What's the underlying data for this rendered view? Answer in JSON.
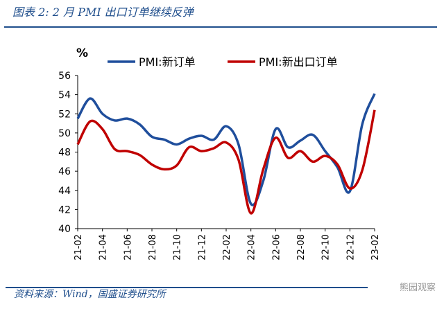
{
  "title": "图表 2:  2 月 PMI 出口订单继续反弹",
  "source": "资料来源：Wind，国盛证券研究所",
  "watermark": "熊园观察",
  "chart_data": {
    "type": "line",
    "title": "",
    "ylabel": "%",
    "ylim": [
      40,
      56
    ],
    "yticks": [
      40,
      42,
      44,
      46,
      48,
      50,
      52,
      54,
      56
    ],
    "x": [
      "21-02",
      "21-03",
      "21-04",
      "21-05",
      "21-06",
      "21-07",
      "21-08",
      "21-09",
      "21-10",
      "21-11",
      "21-12",
      "22-01",
      "22-02",
      "22-03",
      "22-04",
      "22-05",
      "22-06",
      "22-07",
      "22-08",
      "22-09",
      "22-10",
      "22-11",
      "22-12",
      "23-01",
      "23-02"
    ],
    "xtick_labels": [
      "21-02",
      "21-04",
      "21-06",
      "21-08",
      "21-10",
      "21-12",
      "22-02",
      "22-04",
      "22-06",
      "22-08",
      "22-10",
      "22-12",
      "23-02"
    ],
    "grid": false,
    "legend": "top",
    "series": [
      {
        "name": "PMI:新订单",
        "color": "#1f4e9c",
        "values": [
          51.5,
          53.6,
          52.0,
          51.3,
          51.5,
          50.9,
          49.6,
          49.3,
          48.8,
          49.4,
          49.7,
          49.3,
          50.7,
          48.8,
          42.6,
          45.0,
          50.4,
          48.5,
          49.2,
          49.8,
          48.1,
          46.4,
          43.9,
          50.9,
          54.1
        ]
      },
      {
        "name": "PMI:新出口订单",
        "color": "#c00000",
        "values": [
          48.8,
          51.2,
          50.4,
          48.3,
          48.1,
          47.7,
          46.7,
          46.2,
          46.6,
          48.5,
          48.1,
          48.4,
          49.0,
          47.2,
          41.6,
          46.2,
          49.5,
          47.4,
          48.1,
          47.0,
          47.6,
          46.7,
          44.2,
          46.1,
          52.4
        ]
      }
    ]
  }
}
